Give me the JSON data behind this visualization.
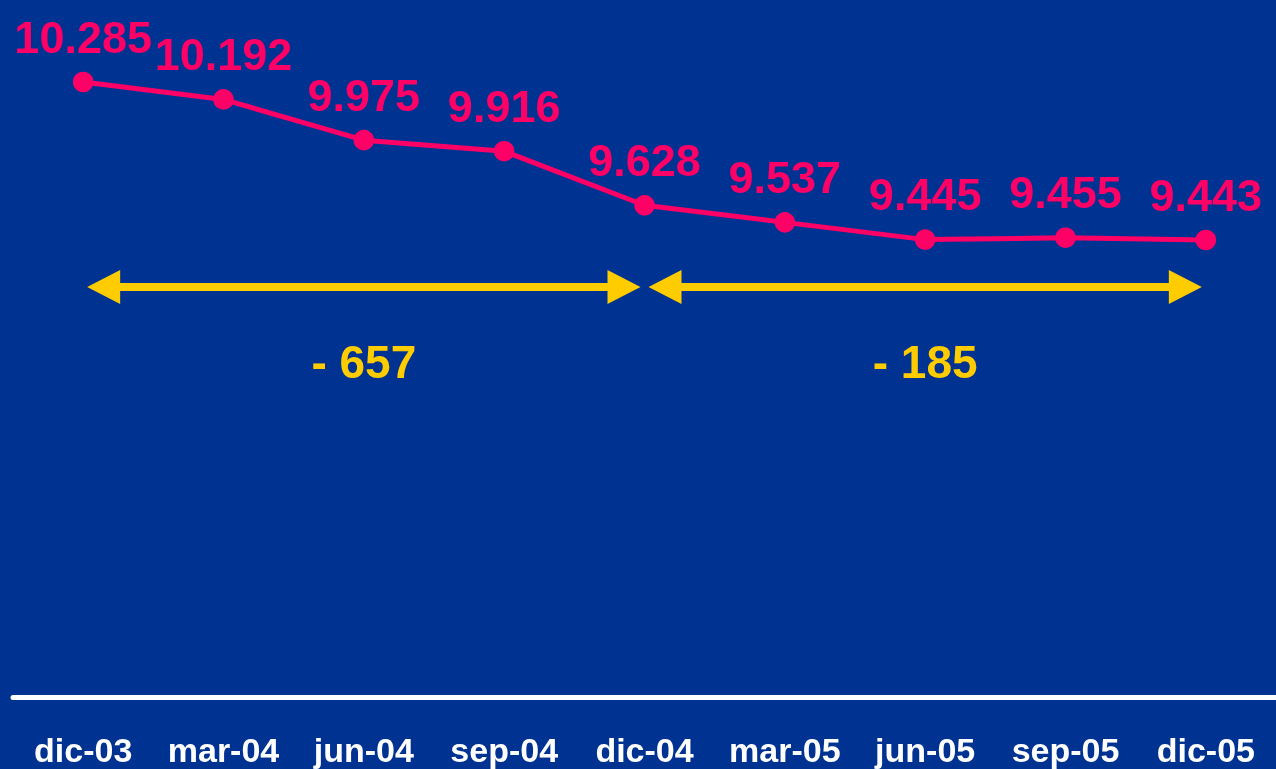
{
  "chart_data": {
    "type": "line",
    "categories": [
      "dic-03",
      "mar-04",
      "jun-04",
      "sep-04",
      "dic-04",
      "mar-05",
      "jun-05",
      "sep-05",
      "dic-05"
    ],
    "values": [
      10285,
      10192,
      9975,
      9916,
      9628,
      9537,
      9445,
      9455,
      9443
    ],
    "value_labels": [
      "10.285",
      "10.192",
      "9.975",
      "9.916",
      "9.628",
      "9.537",
      "9.445",
      "9.455",
      "9.443"
    ],
    "color": "#ff0066",
    "annotations": [
      "- 657",
      "- 185"
    ],
    "marker": "circle",
    "line_style": "solid",
    "grid": false,
    "tick_labels": "x"
  }
}
